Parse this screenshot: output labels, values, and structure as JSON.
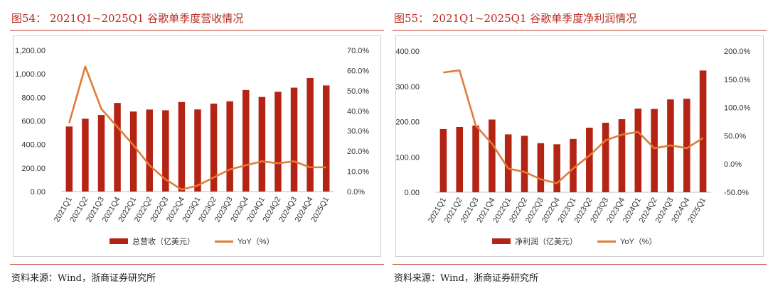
{
  "colors": {
    "bar": "#b32414",
    "line": "#e07b39",
    "title": "#b8271c",
    "rule": "#c0392b"
  },
  "left": {
    "title": "图54： 2021Q1~2025Q1 谷歌单季度营收情况",
    "source": "资料来源：Wind，浙商证券研究所",
    "legend_bar": "总营收（亿美元）",
    "legend_line": "YoY（%）"
  },
  "right": {
    "title": "图55： 2021Q1~2025Q1 谷歌单季度净利润情况",
    "source": "资料来源：Wind，浙商证券研究所",
    "legend_bar": "净利润（亿美元）",
    "legend_line": "YoY（%）"
  },
  "chart_data": [
    {
      "type": "bar",
      "categories": [
        "2021Q1",
        "2021Q2",
        "2021Q3",
        "2021Q4",
        "2022Q1",
        "2022Q2",
        "2022Q3",
        "2022Q4",
        "2023Q1",
        "2023Q2",
        "2023Q3",
        "2023Q4",
        "2024Q1",
        "2024Q2",
        "2024Q3",
        "2024Q4",
        "2025Q1"
      ],
      "series": [
        {
          "name": "总营收（亿美元）",
          "type": "bar",
          "axis": "left",
          "values": [
            553,
            619,
            651,
            753,
            680,
            697,
            691,
            761,
            698,
            747,
            767,
            863,
            804,
            848,
            883,
            965,
            902
          ]
        },
        {
          "name": "YoY（%）",
          "type": "line",
          "axis": "right",
          "values": [
            34,
            62,
            41,
            32,
            23,
            13,
            6,
            1,
            3,
            7,
            11,
            13,
            15,
            14,
            15,
            12,
            12
          ]
        }
      ],
      "left_axis": {
        "min": 0,
        "max": 1200,
        "step": 200,
        "tick_labels": [
          "0.00",
          "200.00",
          "400.00",
          "600.00",
          "800.00",
          "1,000.00",
          "1,200.00"
        ]
      },
      "right_axis": {
        "min": 0,
        "max": 70,
        "step": 10,
        "tick_labels": [
          "0.0%",
          "10.0%",
          "20.0%",
          "30.0%",
          "40.0%",
          "50.0%",
          "60.0%",
          "70.0%"
        ]
      },
      "legend_position": "bottom"
    },
    {
      "type": "bar",
      "categories": [
        "2021Q1",
        "2021Q2",
        "2021Q3",
        "2021Q4",
        "2022Q1",
        "2022Q2",
        "2022Q3",
        "2022Q4",
        "2023Q1",
        "2023Q2",
        "2023Q3",
        "2023Q4",
        "2024Q1",
        "2024Q2",
        "2024Q3",
        "2024Q4",
        "2025Q1"
      ],
      "series": [
        {
          "name": "净利润（亿美元）",
          "type": "bar",
          "axis": "left",
          "values": [
            179,
            185,
            189,
            206,
            164,
            160,
            139,
            136,
            151,
            183,
            197,
            207,
            237,
            236,
            263,
            265,
            345
          ]
        },
        {
          "name": "YoY（%）",
          "type": "line",
          "axis": "right",
          "values": [
            162,
            166,
            68,
            36,
            -8,
            -14,
            -27,
            -34,
            -8,
            15,
            42,
            52,
            57,
            28,
            33,
            28,
            46
          ]
        }
      ],
      "left_axis": {
        "min": 0,
        "max": 400,
        "step": 100,
        "tick_labels": [
          "0.00",
          "100.00",
          "200.00",
          "300.00",
          "400.00"
        ]
      },
      "right_axis": {
        "min": -50,
        "max": 200,
        "step": 50,
        "tick_labels": [
          "-50.0%",
          "0.0%",
          "50.0%",
          "100.0%",
          "150.0%",
          "200.0%"
        ]
      },
      "legend_position": "bottom"
    }
  ]
}
